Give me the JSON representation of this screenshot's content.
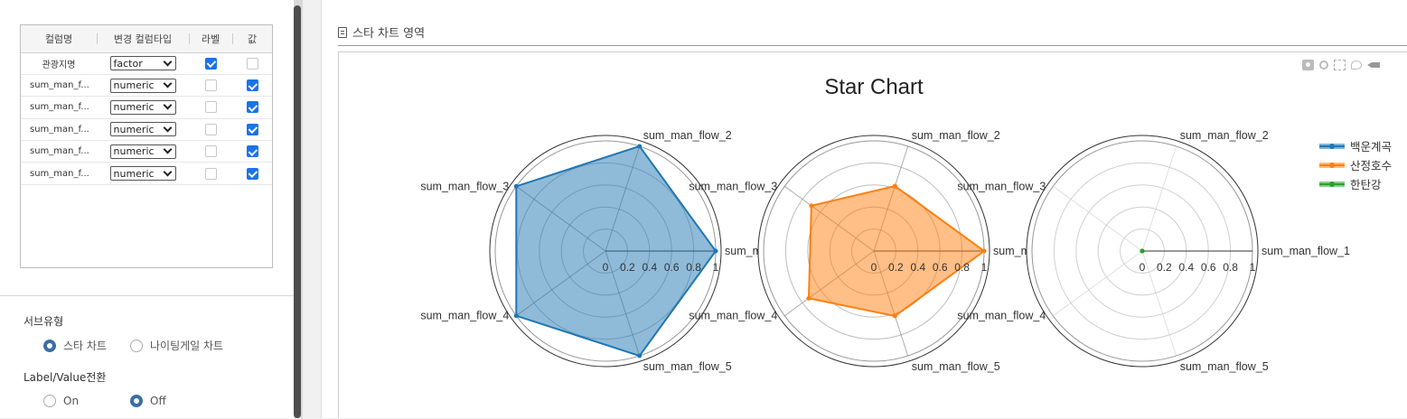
{
  "column_table": {
    "headers": [
      "컬럼명",
      "변경 컬럼타입",
      "라벨",
      "값"
    ],
    "rows": [
      {
        "name": "관광지명",
        "type": "factor",
        "label": true,
        "value": false
      },
      {
        "name": "sum_man_f...",
        "type": "numeric",
        "label": false,
        "value": true
      },
      {
        "name": "sum_man_f...",
        "type": "numeric",
        "label": false,
        "value": true
      },
      {
        "name": "sum_man_f...",
        "type": "numeric",
        "label": false,
        "value": true
      },
      {
        "name": "sum_man_f...",
        "type": "numeric",
        "label": false,
        "value": true
      },
      {
        "name": "sum_man_f...",
        "type": "numeric",
        "label": false,
        "value": true
      }
    ]
  },
  "sub_type": {
    "label": "서브유형",
    "options": [
      "스타 차트",
      "나이팅게일 차트"
    ],
    "selected": 0
  },
  "label_value_switch": {
    "label": "Label/Value전환",
    "options": [
      "On",
      "Off"
    ],
    "selected": 1
  },
  "section": {
    "title": "스타 차트 영역"
  },
  "toolbar": {
    "icons": [
      "camera-icon",
      "zoom-icon",
      "box-select-icon",
      "lasso-select-icon",
      "toggle-hover-icon"
    ]
  },
  "chart_data": {
    "type": "radar",
    "title": "Star Chart",
    "axes": [
      "sum_man_flow_1",
      "sum_man_flow_2",
      "sum_man_flow_3",
      "sum_man_flow_4",
      "sum_man_flow_5"
    ],
    "radial_ticks": [
      "0",
      "0.2",
      "0.4",
      "0.6",
      "0.8",
      "1"
    ],
    "radial_range": [
      0,
      1
    ],
    "legend_position": "top-right",
    "series": [
      {
        "name": "백운계곡",
        "color": "#1f77b4",
        "values": [
          1,
          1,
          1,
          1,
          1
        ]
      },
      {
        "name": "산정호수",
        "color": "#ff7f0e",
        "values": [
          1,
          0.62,
          0.7,
          0.73,
          0.62
        ]
      },
      {
        "name": "한탄강",
        "color": "#2ca02c",
        "values": [
          0,
          0,
          0,
          0,
          0
        ]
      }
    ]
  }
}
